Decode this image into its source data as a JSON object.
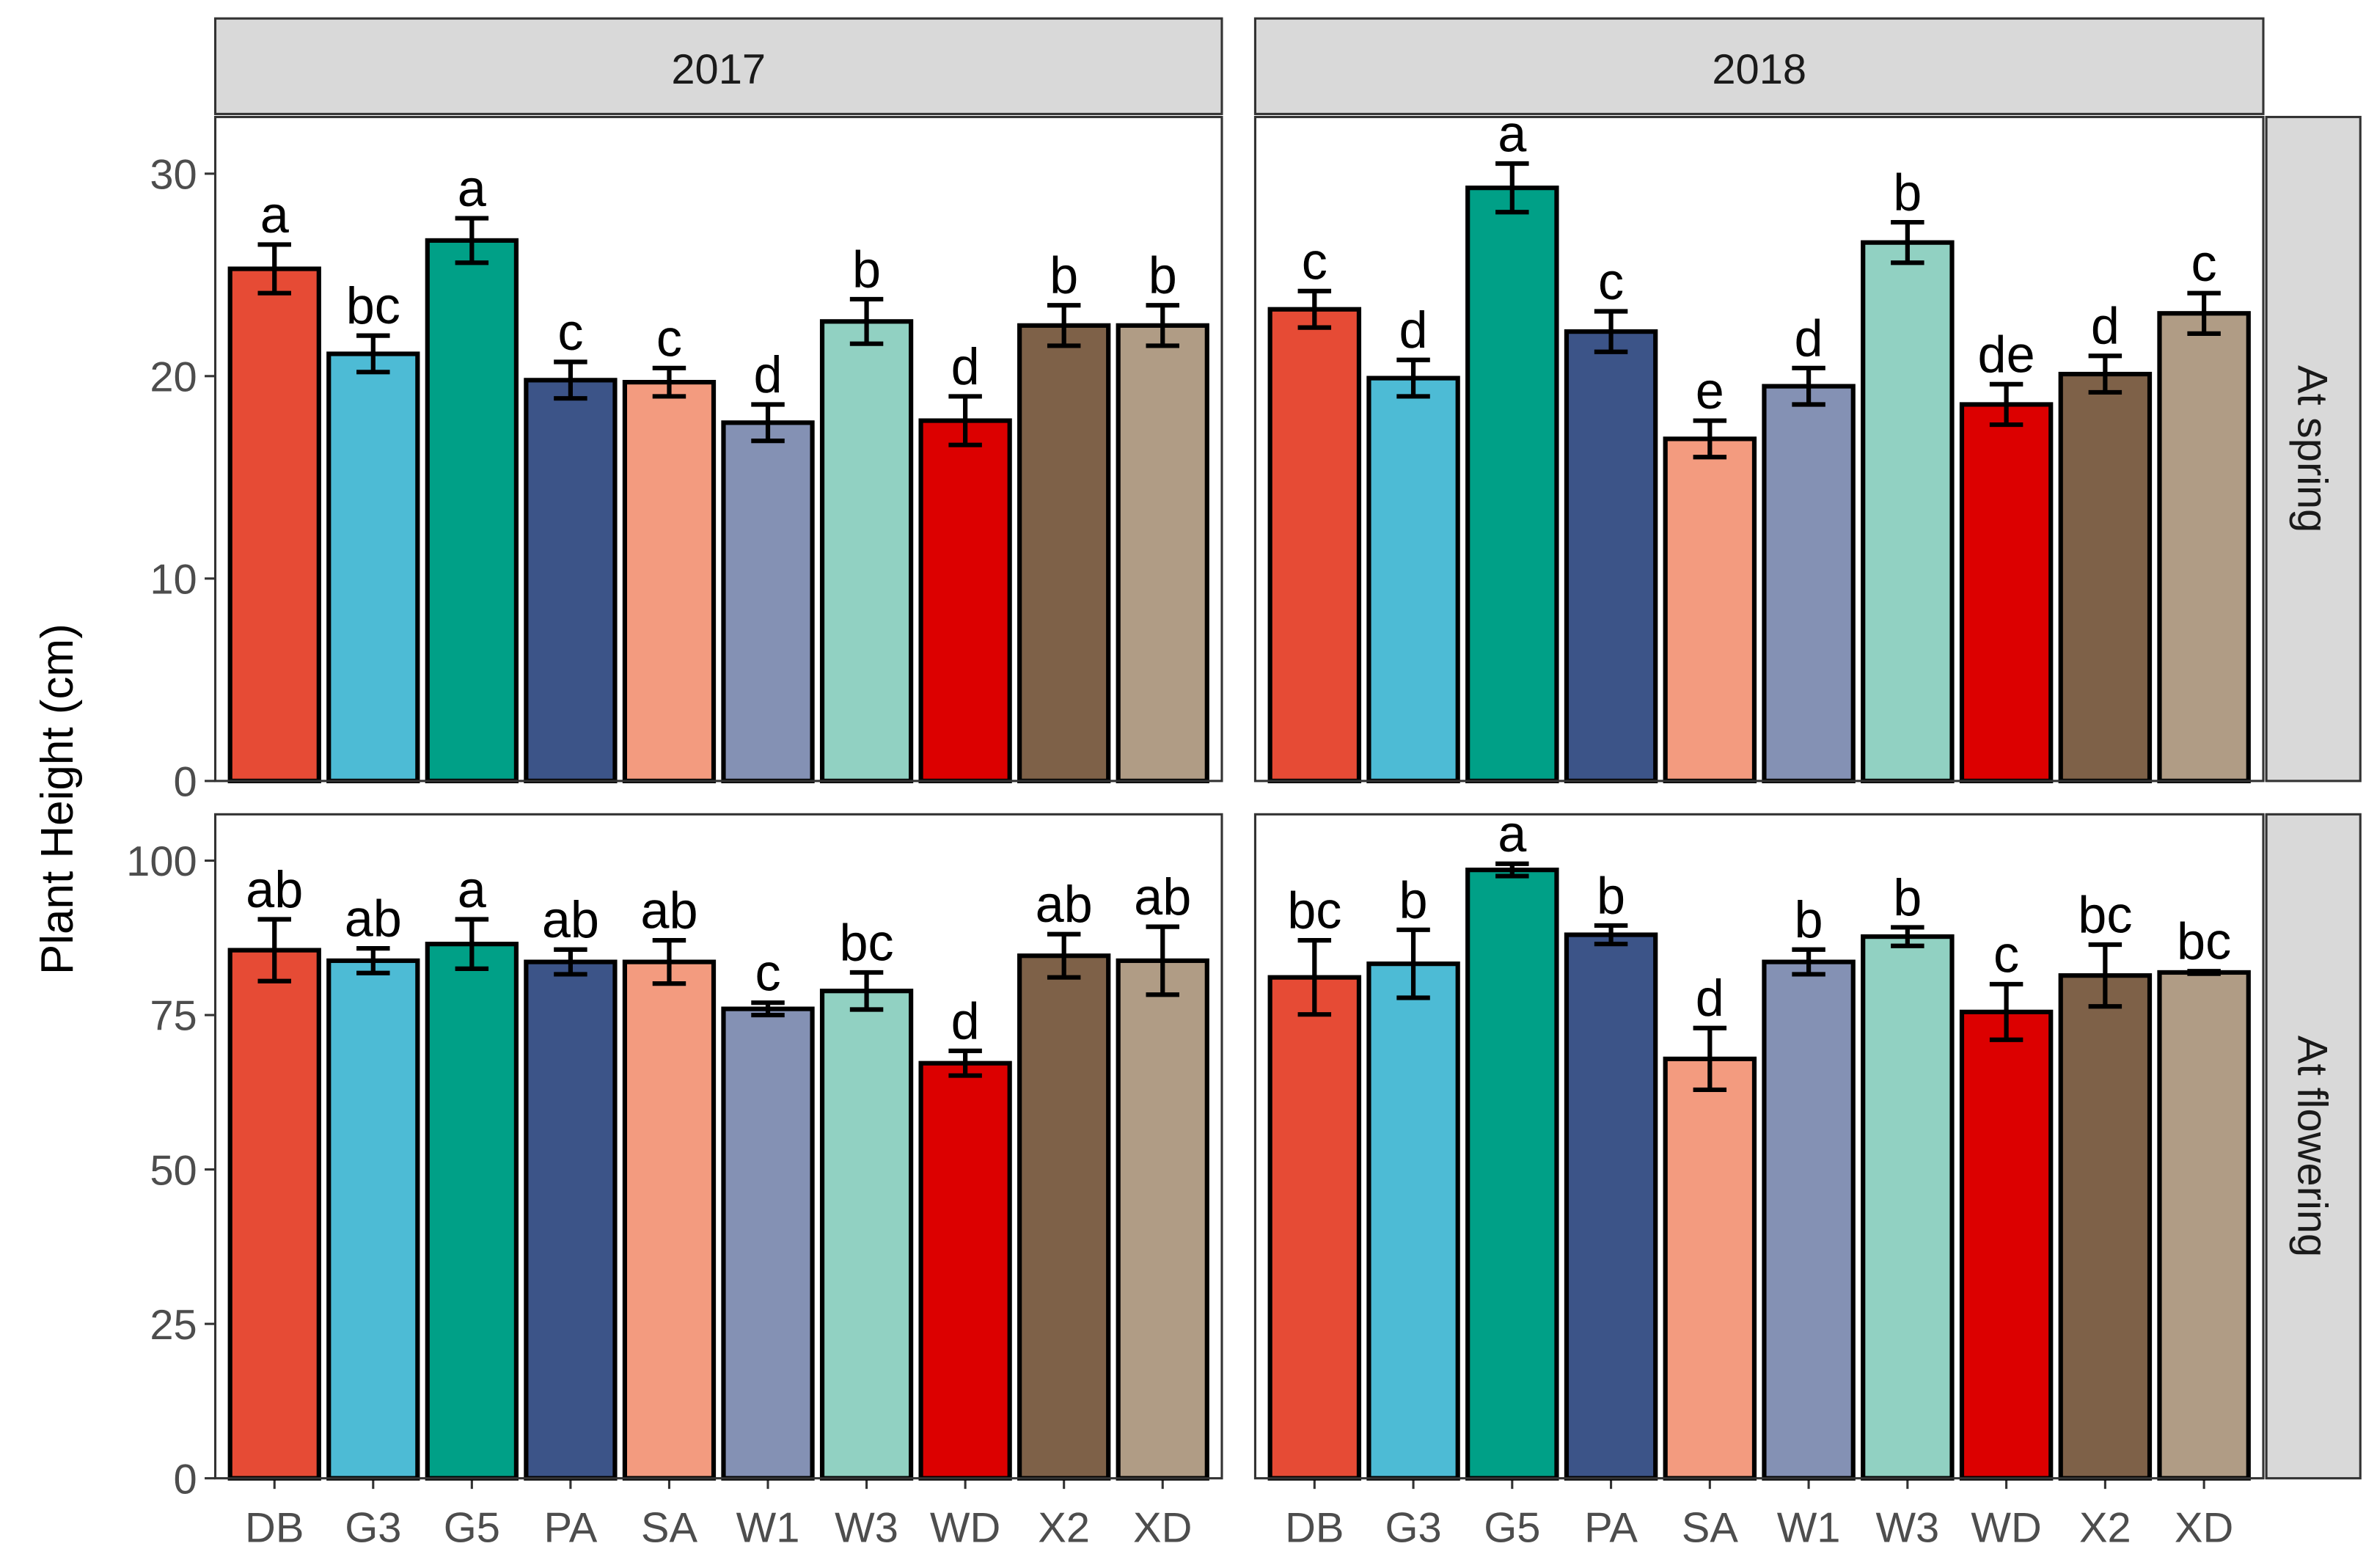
{
  "chart_data": {
    "type": "bar",
    "ylabel": "Plant Height (cm)",
    "categories": [
      "DB",
      "G3",
      "G5",
      "PA",
      "SA",
      "W1",
      "W3",
      "WD",
      "X2",
      "XD"
    ],
    "colors": [
      "#E64B35",
      "#4DBBD5",
      "#00A087",
      "#3C5488",
      "#F39B7F",
      "#8491B4",
      "#91D1C2",
      "#DC0000",
      "#7E6148",
      "#B09C85"
    ],
    "columns": [
      "2017",
      "2018"
    ],
    "rows": [
      {
        "label": "At spring",
        "ylim": [
          0,
          32.8
        ],
        "ticks": [
          0,
          10,
          20,
          30
        ]
      },
      {
        "label": "At flowering",
        "ylim": [
          0,
          107.5
        ],
        "ticks": [
          0,
          25,
          50,
          75,
          100
        ]
      }
    ],
    "panels": [
      {
        "column": "2017",
        "row": "At spring",
        "values": [
          25.3,
          21.1,
          26.7,
          19.8,
          19.7,
          17.7,
          22.7,
          17.8,
          22.5,
          22.5
        ],
        "errors": [
          1.2,
          0.9,
          1.1,
          0.9,
          0.7,
          0.9,
          1.1,
          1.2,
          1.0,
          1.0
        ],
        "letters": [
          "a",
          "bc",
          "a",
          "c",
          "c",
          "d",
          "b",
          "d",
          "b",
          "b"
        ]
      },
      {
        "column": "2018",
        "row": "At spring",
        "values": [
          23.3,
          19.9,
          29.3,
          22.2,
          16.9,
          19.5,
          26.6,
          18.6,
          20.1,
          23.1
        ],
        "errors": [
          0.9,
          0.9,
          1.2,
          1.0,
          0.9,
          0.9,
          1.0,
          1.0,
          0.9,
          1.0
        ],
        "letters": [
          "c",
          "d",
          "a",
          "c",
          "e",
          "d",
          "b",
          "de",
          "d",
          "c"
        ]
      },
      {
        "column": "2017",
        "row": "At flowering",
        "values": [
          85.5,
          83.8,
          86.5,
          83.6,
          83.6,
          76.0,
          78.9,
          67.2,
          84.6,
          83.8
        ],
        "errors": [
          5.0,
          2.0,
          4.0,
          2.0,
          3.5,
          1.0,
          3.0,
          2.0,
          3.5,
          5.5
        ],
        "letters": [
          "ab",
          "ab",
          "a",
          "ab",
          "ab",
          "c",
          "bc",
          "d",
          "ab",
          "ab"
        ]
      },
      {
        "column": "2018",
        "row": "At flowering",
        "values": [
          81.1,
          83.3,
          98.5,
          88.0,
          67.9,
          83.6,
          87.7,
          75.5,
          81.4,
          81.9
        ],
        "errors": [
          6.0,
          5.5,
          1.0,
          1.5,
          5.0,
          2.0,
          1.5,
          4.5,
          5.0,
          0.2
        ],
        "letters": [
          "bc",
          "b",
          "a",
          "b",
          "d",
          "b",
          "b",
          "c",
          "bc",
          "bc"
        ]
      }
    ]
  }
}
